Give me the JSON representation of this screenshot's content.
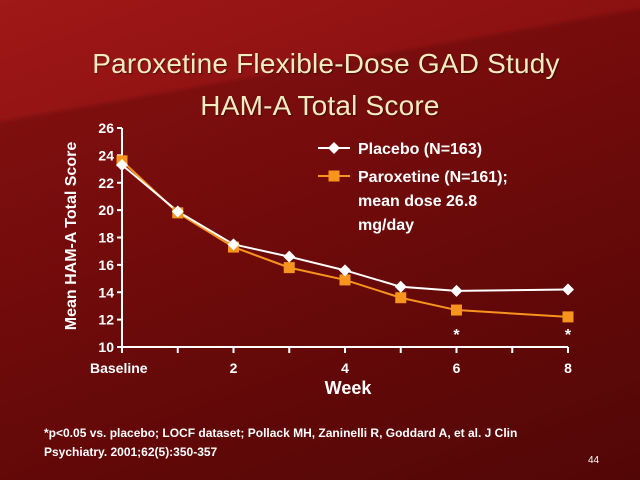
{
  "slide": {
    "title_line1": "Paroxetine Flexible-Dose GAD Study",
    "title_line2": "HAM-A Total Score",
    "footnote_line1": "*p<0.05 vs. placebo; LOCF dataset; Pollack MH, Zaninelli R, Goddard A, et al. J Clin",
    "footnote_line2": "Psychiatry. 2001;62(5):350-357",
    "page_number": "44"
  },
  "colors": {
    "background": "#7a0d0d",
    "title_text": "#f3ecc0",
    "placebo": "#ffffff",
    "paroxetine": "#f7941d"
  },
  "chart_data": {
    "type": "line",
    "xlabel": "Week",
    "ylabel": "Mean HAM-A Total Score",
    "xlim": [
      0,
      8
    ],
    "ylim": [
      10,
      26
    ],
    "yticks": [
      10,
      12,
      14,
      16,
      18,
      20,
      22,
      24,
      26
    ],
    "xticks": [
      {
        "x": 0,
        "label": "Baseline"
      },
      {
        "x": 2,
        "label": "2"
      },
      {
        "x": 4,
        "label": "4"
      },
      {
        "x": 6,
        "label": "6"
      },
      {
        "x": 8,
        "label": "8"
      }
    ],
    "grid": false,
    "legend_position": "top-right",
    "series": [
      {
        "name": "Placebo (N=163)",
        "marker": "diamond",
        "color": "#ffffff",
        "x": [
          0,
          1,
          2,
          3,
          4,
          5,
          6,
          8
        ],
        "y": [
          23.3,
          19.9,
          17.5,
          16.6,
          15.6,
          14.4,
          14.1,
          14.2
        ]
      },
      {
        "name": "Paroxetine (N=161); mean dose 26.8 mg/day",
        "legend_lines": [
          "Paroxetine (N=161);",
          "mean dose 26.8",
          "mg/day"
        ],
        "marker": "square",
        "color": "#f7941d",
        "x": [
          0,
          1,
          2,
          3,
          4,
          5,
          6,
          8
        ],
        "y": [
          23.6,
          19.8,
          17.3,
          15.8,
          14.9,
          13.6,
          12.7,
          12.2
        ]
      }
    ],
    "annotations": [
      {
        "x": 6,
        "text": "*"
      },
      {
        "x": 8,
        "text": "*"
      }
    ]
  }
}
